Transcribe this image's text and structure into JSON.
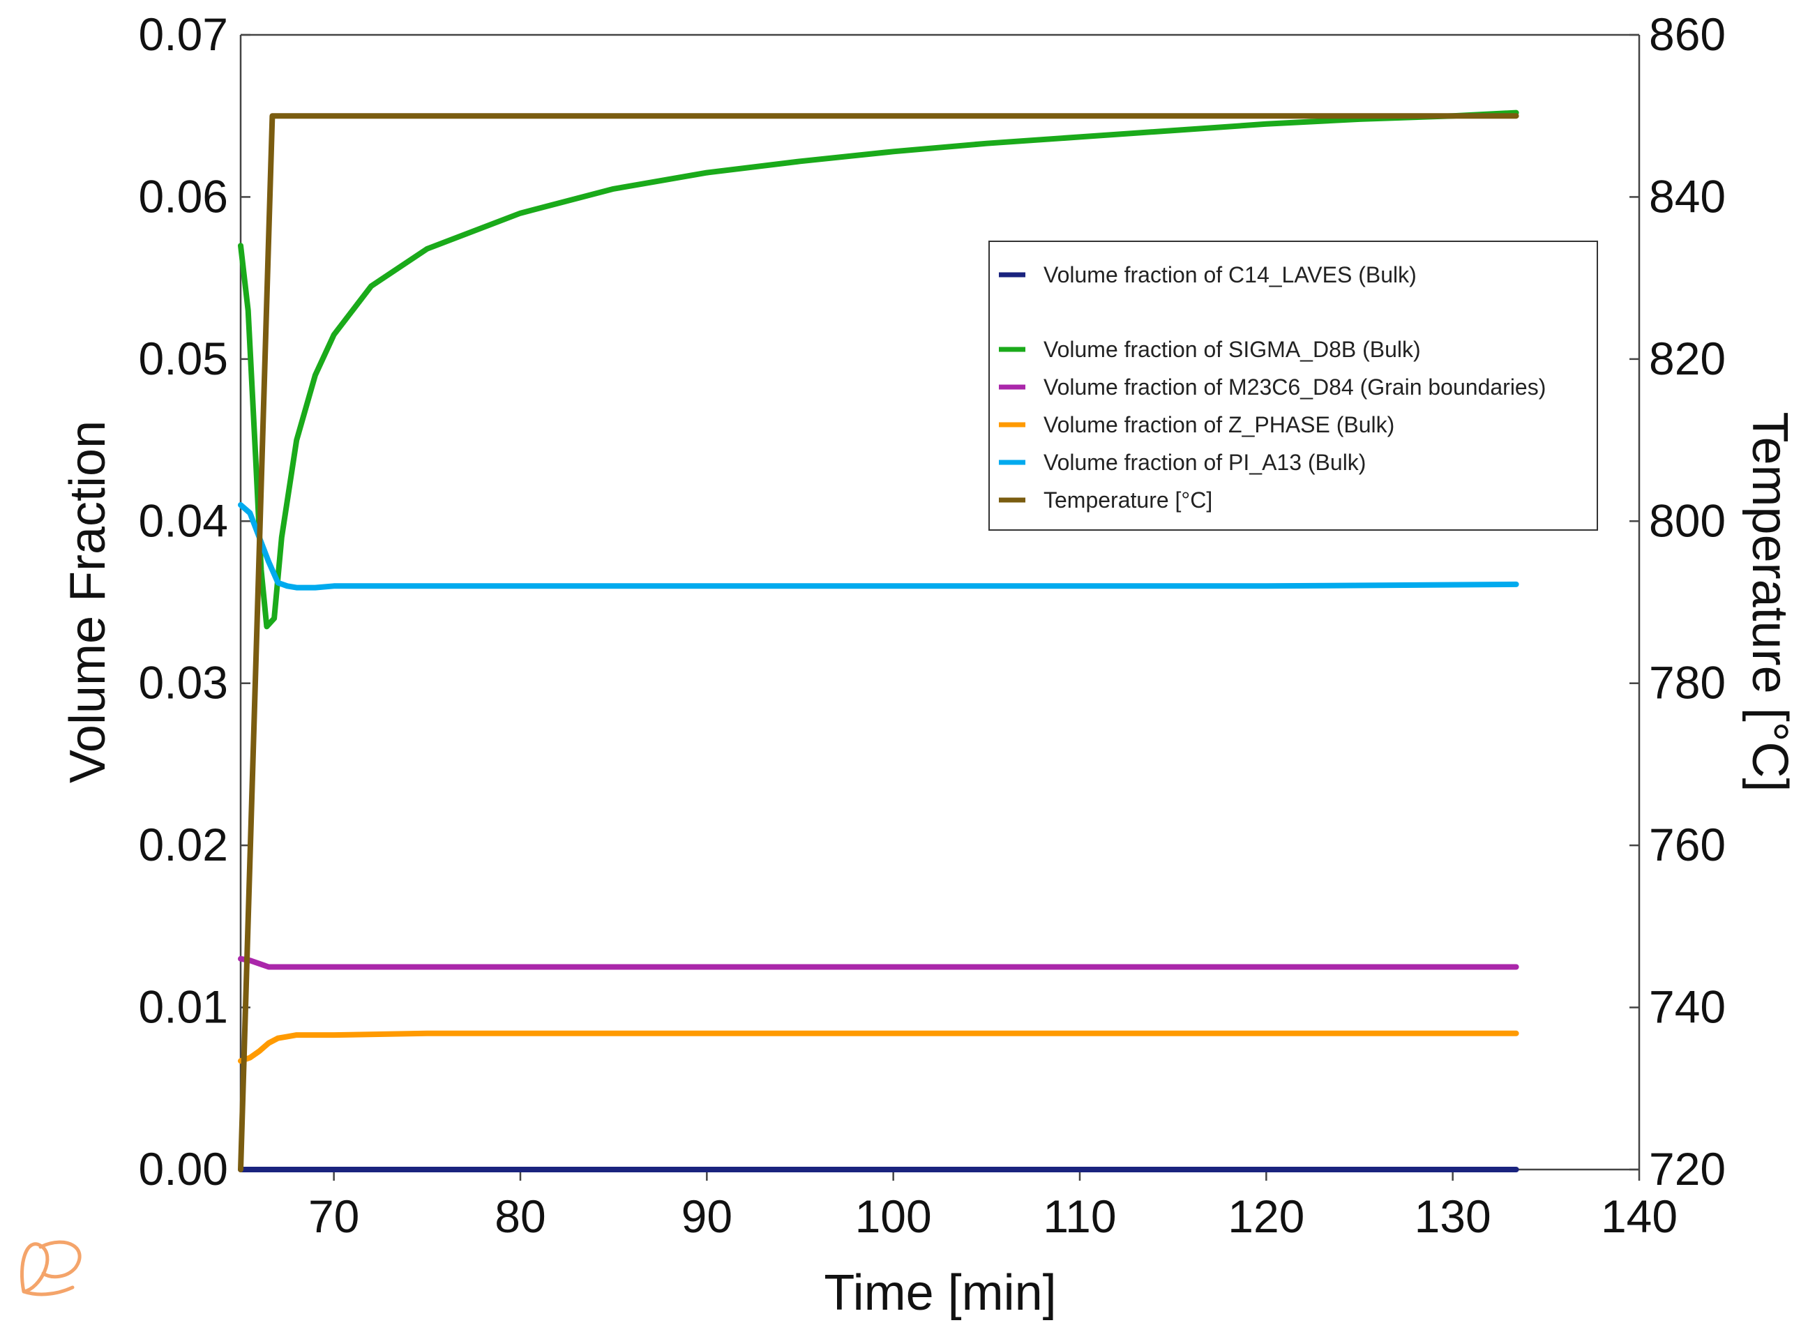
{
  "chart_data": {
    "type": "line",
    "xlabel": "Time [min]",
    "ylabel": "Volume Fraction",
    "y2label": "Temperature [°C]",
    "xlim": [
      65,
      140
    ],
    "ylim": [
      0,
      0.07
    ],
    "y2lim": [
      720,
      860
    ],
    "x_ticks": [
      70,
      80,
      90,
      100,
      110,
      120,
      130,
      140
    ],
    "x_tick_labels": [
      "70",
      "80",
      "90",
      "100",
      "110",
      "120",
      "130",
      "140"
    ],
    "y_ticks": [
      0,
      0.01,
      0.02,
      0.03,
      0.04,
      0.05,
      0.06,
      0.07
    ],
    "y_tick_labels": [
      "0.00",
      "0.01",
      "0.02",
      "0.03",
      "0.04",
      "0.05",
      "0.06",
      "0.07"
    ],
    "y2_ticks": [
      720,
      740,
      760,
      780,
      800,
      820,
      840,
      860
    ],
    "y2_tick_labels": [
      "720",
      "740",
      "760",
      "780",
      "800",
      "820",
      "840",
      "860"
    ],
    "grid": false,
    "legend_position": "right",
    "series": [
      {
        "name": "Volume fraction of C14_LAVES (Bulk)",
        "color": "#1a237e",
        "axis": "left",
        "x": [
          65,
          70,
          80,
          90,
          100,
          110,
          120,
          133.4
        ],
        "y": [
          0,
          0,
          0,
          0,
          0,
          0,
          0,
          0
        ]
      },
      {
        "name": "Volume fraction of SIGMA_D8B (Bulk)",
        "color": "#1aaa1a",
        "axis": "left",
        "x": [
          65,
          65.4,
          65.8,
          66.1,
          66.4,
          66.8,
          67.2,
          68,
          69,
          70,
          72,
          75,
          80,
          85,
          90,
          95,
          100,
          105,
          110,
          115,
          120,
          125,
          130,
          133.4
        ],
        "y": [
          0.057,
          0.053,
          0.044,
          0.037,
          0.0335,
          0.034,
          0.039,
          0.045,
          0.049,
          0.0515,
          0.0545,
          0.0568,
          0.059,
          0.0605,
          0.0615,
          0.0622,
          0.0628,
          0.0633,
          0.0637,
          0.0641,
          0.0645,
          0.0648,
          0.065,
          0.0652
        ]
      },
      {
        "name": "Volume fraction of M23C6_D84 (Grain boundaries)",
        "color": "#aa27aa",
        "axis": "left",
        "x": [
          65,
          65.5,
          66,
          66.5,
          67,
          70,
          80,
          90,
          100,
          110,
          120,
          133.4
        ],
        "y": [
          0.013,
          0.0129,
          0.0127,
          0.0125,
          0.0125,
          0.0125,
          0.0125,
          0.0125,
          0.0125,
          0.0125,
          0.0125,
          0.0125
        ]
      },
      {
        "name": "Volume fraction of Z_PHASE (Bulk)",
        "color": "#ff9a00",
        "axis": "left",
        "x": [
          65,
          65.5,
          66,
          66.5,
          67,
          67.5,
          68,
          69,
          70,
          75,
          80,
          90,
          100,
          110,
          120,
          133.4
        ],
        "y": [
          0.0067,
          0.0069,
          0.0073,
          0.0078,
          0.0081,
          0.0082,
          0.0083,
          0.0083,
          0.0083,
          0.0084,
          0.0084,
          0.0084,
          0.0084,
          0.0084,
          0.0084,
          0.0084
        ]
      },
      {
        "name": "Volume fraction of PI_A13 (Bulk)",
        "color": "#00aaee",
        "axis": "left",
        "x": [
          65,
          65.5,
          66,
          66.5,
          67,
          67.5,
          68,
          69,
          70,
          80,
          90,
          100,
          110,
          120,
          133.4
        ],
        "y": [
          0.041,
          0.0405,
          0.039,
          0.0375,
          0.0362,
          0.036,
          0.0359,
          0.0359,
          0.036,
          0.036,
          0.036,
          0.036,
          0.036,
          0.036,
          0.0361
        ]
      },
      {
        "name": "Temperature [°C]",
        "color": "#7a5c10",
        "axis": "right",
        "x": [
          65,
          66.7,
          70,
          80,
          90,
          100,
          110,
          120,
          133.4
        ],
        "y": [
          720,
          850,
          850,
          850,
          850,
          850,
          850,
          850,
          850
        ]
      }
    ]
  }
}
